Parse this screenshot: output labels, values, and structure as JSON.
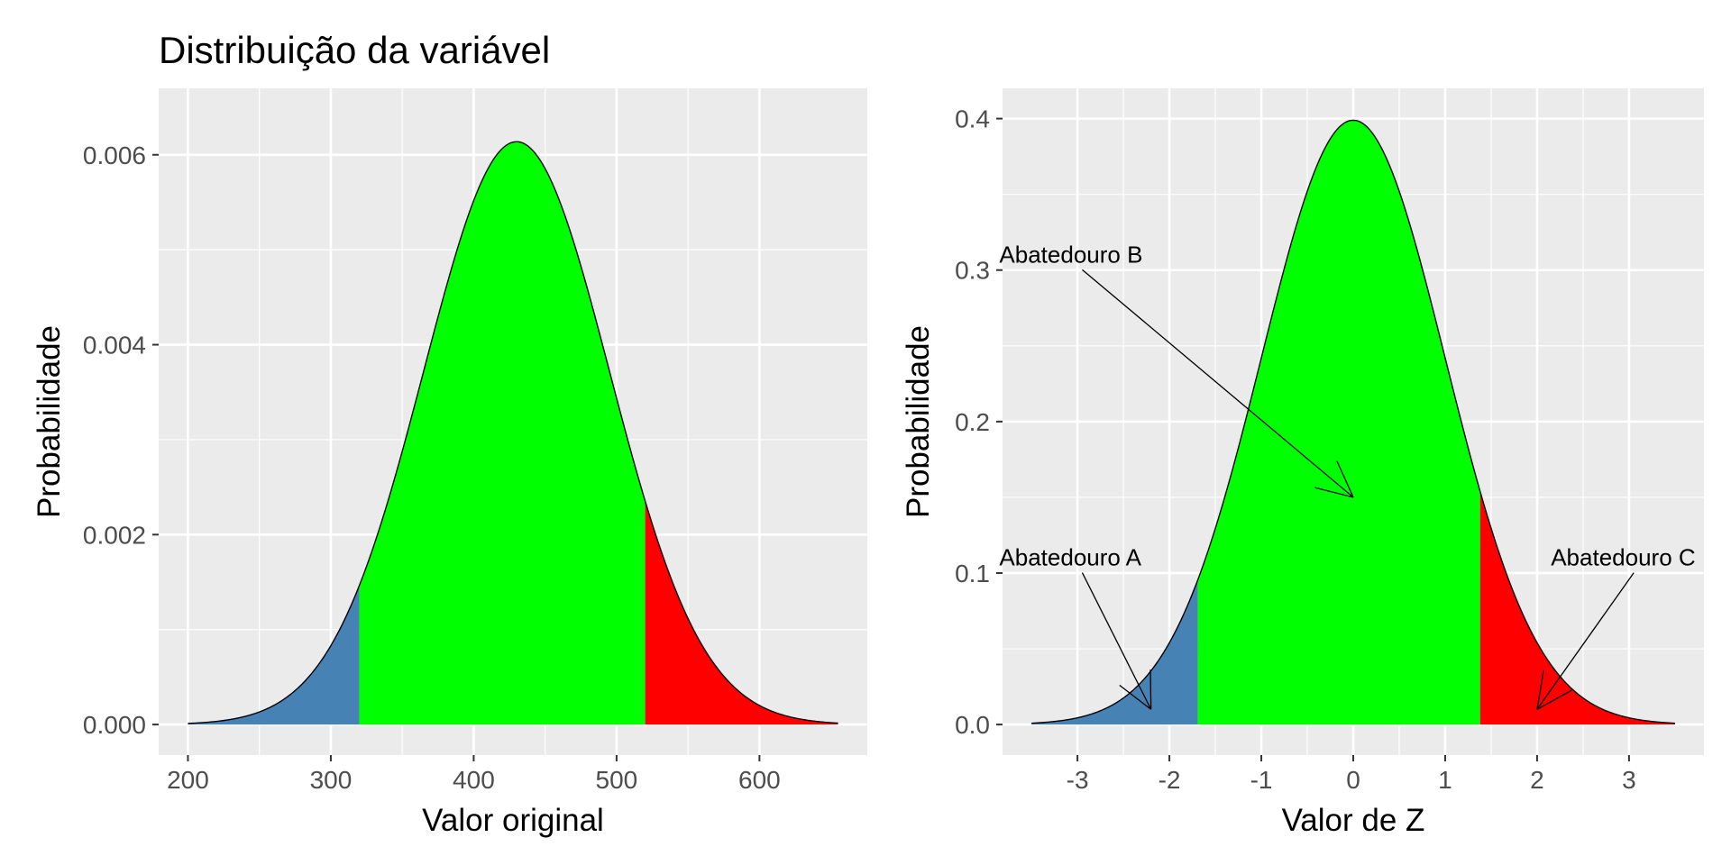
{
  "title": "Distribuição da variável",
  "chart_data": [
    {
      "type": "area",
      "distribution": "normal",
      "mean": 430,
      "sd": 65,
      "xlabel": "Valor original",
      "ylabel": "Probabilidade",
      "xlim": [
        200,
        655
      ],
      "ylim": [
        0,
        0.0067
      ],
      "x_ticks": [
        200,
        300,
        400,
        500,
        600
      ],
      "y_ticks": [
        0.0,
        0.002,
        0.004,
        0.006
      ],
      "y_tick_labels": [
        "0.000",
        "0.002",
        "0.004",
        "0.006"
      ],
      "regions": [
        {
          "from": 200,
          "to": 320,
          "color": "#4682b4"
        },
        {
          "from": 320,
          "to": 520,
          "color": "#00ff00"
        },
        {
          "from": 520,
          "to": 655,
          "color": "#ff0000"
        }
      ],
      "grid": true,
      "annotations": []
    },
    {
      "type": "area",
      "distribution": "normal",
      "mean": 0,
      "sd": 1,
      "xlabel": "Valor de Z",
      "ylabel": "Probabilidade",
      "xlim": [
        -3.5,
        3.5
      ],
      "ylim": [
        0,
        0.42
      ],
      "x_ticks": [
        -3,
        -2,
        -1,
        0,
        1,
        2,
        3
      ],
      "y_ticks": [
        0.0,
        0.1,
        0.2,
        0.3,
        0.4
      ],
      "y_tick_labels": [
        "0.0",
        "0.1",
        "0.2",
        "0.3",
        "0.4"
      ],
      "regions": [
        {
          "from": -3.5,
          "to": -1.69,
          "color": "#4682b4"
        },
        {
          "from": -1.69,
          "to": 1.38,
          "color": "#00ff00"
        },
        {
          "from": 1.38,
          "to": 3.5,
          "color": "#ff0000"
        }
      ],
      "grid": true,
      "annotations": [
        {
          "label": "Abatedouro A",
          "text_x": -3.85,
          "text_y": 0.105,
          "arrow_to_x": -2.2,
          "arrow_to_y": 0.01
        },
        {
          "label": "Abatedouro B",
          "text_x": -3.85,
          "text_y": 0.305,
          "arrow_to_x": 0.0,
          "arrow_to_y": 0.15
        },
        {
          "label": "Abatedouro C",
          "text_x": 2.15,
          "text_y": 0.105,
          "arrow_to_x": 2.0,
          "arrow_to_y": 0.01
        }
      ]
    }
  ]
}
